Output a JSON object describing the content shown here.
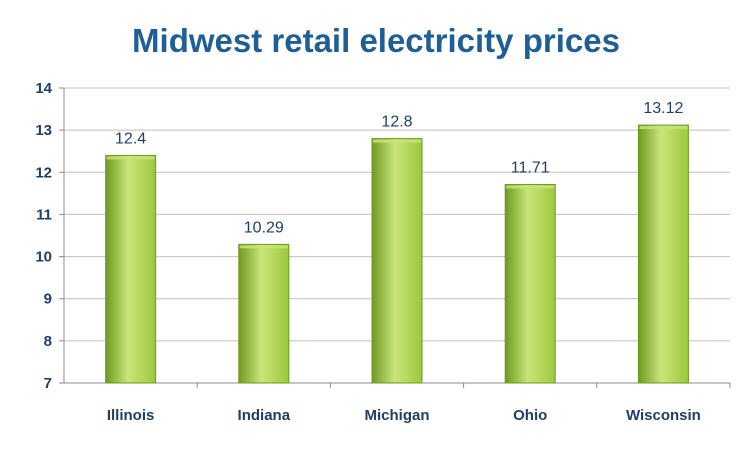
{
  "chart_data": {
    "type": "bar",
    "title": "Midwest retail electricity prices",
    "categories": [
      "Illinois",
      "Indiana",
      "Michigan",
      "Ohio",
      "Wisconsin"
    ],
    "values": [
      12.4,
      10.29,
      12.8,
      11.71,
      13.12
    ],
    "data_labels": [
      "12.4",
      "10.29",
      "12.8",
      "11.71",
      "13.12"
    ],
    "yticks": [
      "7",
      "8",
      "9",
      "10",
      "11",
      "12",
      "13",
      "14"
    ],
    "ylim": [
      7,
      14
    ],
    "xlabel": "",
    "ylabel": "",
    "grid": true,
    "legend": "none",
    "colors": {
      "title": "#1f5f96",
      "tick_text": "#1f3f66",
      "bar_light": "#c9e57a",
      "bar_mid": "#9cc83c",
      "bar_dark": "#6f9a22",
      "grid": "#bfbfbf",
      "axis": "#8c8c8c"
    }
  }
}
